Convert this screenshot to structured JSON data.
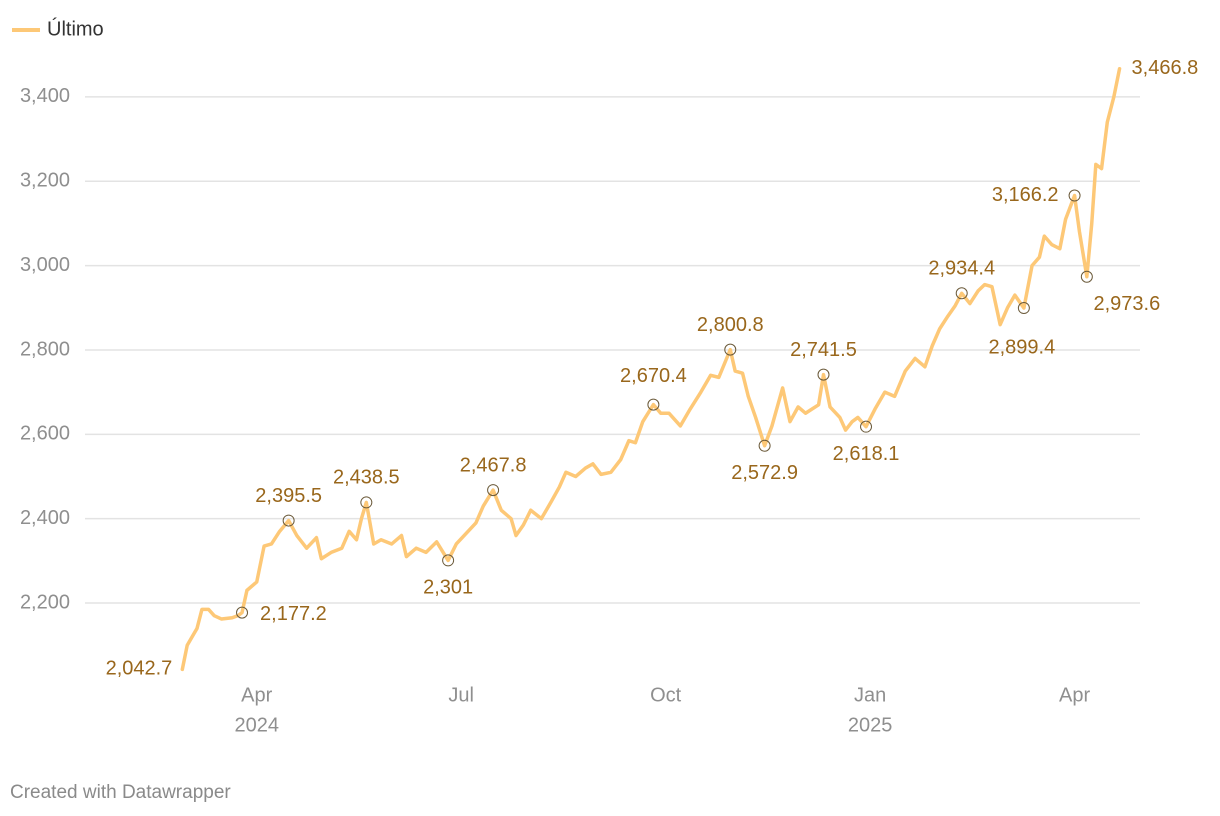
{
  "chart_data": {
    "type": "line",
    "footer": "Created with Datawrapper",
    "xlim": [
      2024.04,
      2025.33
    ],
    "ylim": [
      2040,
      3470
    ],
    "xticks": [
      {
        "value": 2024.25,
        "label": "Apr",
        "year": "2024"
      },
      {
        "value": 2024.5,
        "label": "Jul"
      },
      {
        "value": 2024.75,
        "label": "Oct"
      },
      {
        "value": 2025.0,
        "label": "Jan",
        "year": "2025"
      },
      {
        "value": 2025.25,
        "label": "Apr"
      }
    ],
    "yticks": [
      {
        "value": 2200,
        "label": "2,200"
      },
      {
        "value": 2400,
        "label": "2,400"
      },
      {
        "value": 2600,
        "label": "2,600"
      },
      {
        "value": 2800,
        "label": "2,800"
      },
      {
        "value": 3000,
        "label": "3,000"
      },
      {
        "value": 3200,
        "label": "3,200"
      },
      {
        "value": 3400,
        "label": "3,400"
      }
    ],
    "grid": true,
    "legend": "top-left",
    "x": [
      2024.159,
      2024.165,
      2024.177,
      2024.183,
      2024.191,
      2024.198,
      2024.207,
      2024.22,
      2024.227,
      2024.232,
      2024.238,
      2024.25,
      2024.259,
      2024.268,
      2024.278,
      2024.289,
      2024.299,
      2024.311,
      2024.323,
      2024.329,
      2024.341,
      2024.354,
      2024.363,
      2024.372,
      2024.378,
      2024.384,
      2024.393,
      2024.402,
      2024.415,
      2024.427,
      2024.433,
      2024.445,
      2024.457,
      2024.47,
      2024.484,
      2024.494,
      2024.506,
      2024.518,
      2024.527,
      2024.539,
      2024.549,
      2024.561,
      2024.567,
      2024.576,
      2024.585,
      2024.598,
      2024.61,
      2024.62,
      2024.628,
      2024.64,
      2024.652,
      2024.661,
      2024.671,
      2024.683,
      2024.695,
      2024.705,
      2024.713,
      2024.722,
      2024.735,
      2024.744,
      2024.754,
      2024.768,
      2024.78,
      2024.793,
      2024.805,
      2024.815,
      2024.829,
      2024.835,
      2024.844,
      2024.851,
      2024.86,
      2024.871,
      2024.88,
      2024.893,
      2024.902,
      2024.912,
      2024.921,
      2024.929,
      2024.937,
      2024.943,
      2024.951,
      2024.963,
      2024.97,
      2024.978,
      2024.985,
      2024.995,
      2025.006,
      2025.018,
      2025.03,
      2025.043,
      2025.055,
      2025.067,
      2025.076,
      2025.085,
      2025.095,
      2025.104,
      2025.112,
      2025.122,
      2025.132,
      2025.14,
      2025.149,
      2025.159,
      2025.168,
      2025.177,
      2025.188,
      2025.198,
      2025.207,
      2025.213,
      2025.222,
      2025.232,
      2025.239,
      2025.25,
      2025.256,
      2025.265,
      2025.271,
      2025.276,
      2025.283,
      2025.29,
      2025.298,
      2025.305
    ],
    "series": [
      {
        "name": "Último",
        "color": "#fdc877",
        "values": [
          2042.7,
          2100,
          2140,
          2185,
          2185,
          2170,
          2162,
          2165,
          2170,
          2177.2,
          2230,
          2250,
          2335,
          2340,
          2370,
          2395.5,
          2360,
          2330,
          2355,
          2305,
          2320,
          2330,
          2370,
          2350,
          2400,
          2438.5,
          2340,
          2350,
          2340,
          2360,
          2310,
          2330,
          2320,
          2345,
          2301,
          2340,
          2365,
          2390,
          2430,
          2467.8,
          2420,
          2400,
          2360,
          2385,
          2420,
          2400,
          2440,
          2475,
          2510,
          2500,
          2520,
          2530,
          2505,
          2510,
          2540,
          2585,
          2580,
          2630,
          2670.4,
          2650,
          2650,
          2620,
          2660,
          2700,
          2740,
          2735,
          2800.8,
          2750,
          2745,
          2690,
          2640,
          2572.9,
          2620,
          2710,
          2630,
          2665,
          2650,
          2660,
          2670,
          2741.5,
          2665,
          2640,
          2610,
          2630,
          2640,
          2618.1,
          2660,
          2700,
          2690,
          2750,
          2780,
          2760,
          2810,
          2850,
          2880,
          2905,
          2934.4,
          2910,
          2940,
          2955,
          2950,
          2860,
          2900,
          2930,
          2899.4,
          3000,
          3020,
          3070,
          3050,
          3040,
          3110,
          3166.2,
          3080,
          2973.6,
          3100,
          3240,
          3230,
          3340,
          3400,
          3466.8
        ],
        "value_labels": [
          "2,042.7",
          null,
          null,
          null,
          null,
          null,
          null,
          null,
          null,
          "2,177.2",
          null,
          null,
          null,
          null,
          null,
          "2,395.5",
          null,
          null,
          null,
          null,
          null,
          null,
          null,
          null,
          null,
          "2,438.5",
          null,
          null,
          null,
          null,
          null,
          null,
          null,
          null,
          "2,301",
          null,
          null,
          null,
          null,
          "2,467.8",
          null,
          null,
          null,
          null,
          null,
          null,
          null,
          null,
          null,
          null,
          null,
          null,
          null,
          null,
          null,
          null,
          null,
          null,
          "2,670.4",
          null,
          null,
          null,
          null,
          null,
          null,
          null,
          "2,800.8",
          null,
          null,
          null,
          null,
          "2,572.9",
          null,
          null,
          null,
          null,
          null,
          null,
          null,
          "2,741.5",
          null,
          null,
          null,
          null,
          null,
          "2,618.1",
          null,
          null,
          null,
          null,
          null,
          null,
          null,
          null,
          null,
          null,
          "2,934.4",
          null,
          null,
          null,
          null,
          null,
          null,
          null,
          "2,899.4",
          null,
          null,
          null,
          null,
          null,
          null,
          "3,166.2",
          null,
          "2,973.6",
          null,
          null,
          null,
          null,
          null,
          "3,466.8"
        ]
      }
    ]
  }
}
